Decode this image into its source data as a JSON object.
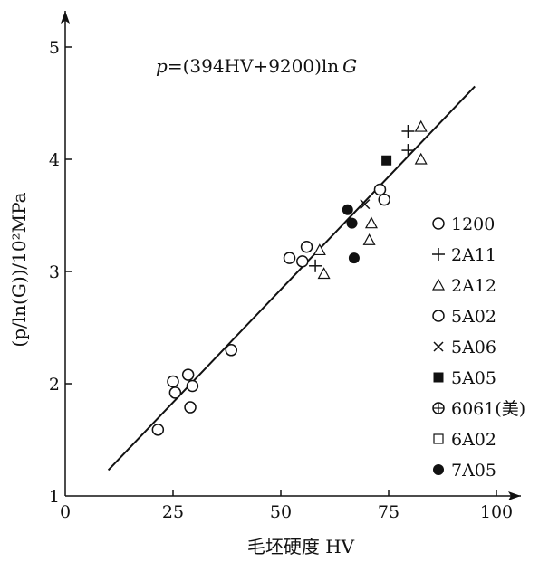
{
  "chart_data": {
    "type": "scatter",
    "title": "",
    "formula_prefix": "p",
    "formula_middle": "=(394HV+9200)ln",
    "formula_suffix": "G",
    "xlabel": "毛坯硬度 HV",
    "ylabel": "(p/ln(G))/10²MPa",
    "xlim": [
      0,
      100
    ],
    "ylim": [
      1,
      5
    ],
    "x_ticks": [
      0,
      25,
      50,
      75,
      100
    ],
    "y_ticks": [
      1,
      2,
      3,
      4,
      5
    ],
    "fit_line": {
      "x": [
        10,
        95
      ],
      "y": [
        1.23,
        4.65
      ]
    },
    "legend_position": "right",
    "series": [
      {
        "name": "1200",
        "marker": "open-circle",
        "points": []
      },
      {
        "name": "2A11",
        "marker": "plus",
        "points": [
          [
            79.5,
            4.25
          ],
          [
            79.5,
            4.08
          ],
          [
            58,
            3.05
          ]
        ]
      },
      {
        "name": "2A12",
        "marker": "open-triangle",
        "points": [
          [
            82.5,
            4.29
          ],
          [
            82.5,
            4.0
          ],
          [
            71,
            3.43
          ],
          [
            70.5,
            3.28
          ],
          [
            59,
            3.19
          ],
          [
            60,
            2.98
          ]
        ]
      },
      {
        "name": "5A02",
        "marker": "open-circle",
        "points": [
          [
            73,
            3.73
          ],
          [
            74,
            3.64
          ],
          [
            56,
            3.22
          ],
          [
            52,
            3.12
          ],
          [
            55,
            3.09
          ],
          [
            38.5,
            2.3
          ],
          [
            25,
            2.02
          ],
          [
            28.5,
            2.08
          ],
          [
            25.5,
            1.92
          ],
          [
            29.5,
            1.98
          ],
          [
            29,
            1.79
          ],
          [
            21.5,
            1.59
          ]
        ]
      },
      {
        "name": "5A06",
        "marker": "cross",
        "points": [
          [
            69.5,
            3.6
          ]
        ]
      },
      {
        "name": "5A05",
        "marker": "filled-square",
        "points": [
          [
            74.5,
            3.99
          ]
        ]
      },
      {
        "name": "6061(美)",
        "marker": "circle-plus",
        "points": []
      },
      {
        "name": "6A02",
        "marker": "open-square",
        "points": []
      },
      {
        "name": "7A05",
        "marker": "filled-circle",
        "points": [
          [
            65.5,
            3.55
          ],
          [
            66.5,
            3.43
          ],
          [
            67,
            3.12
          ]
        ]
      }
    ]
  }
}
